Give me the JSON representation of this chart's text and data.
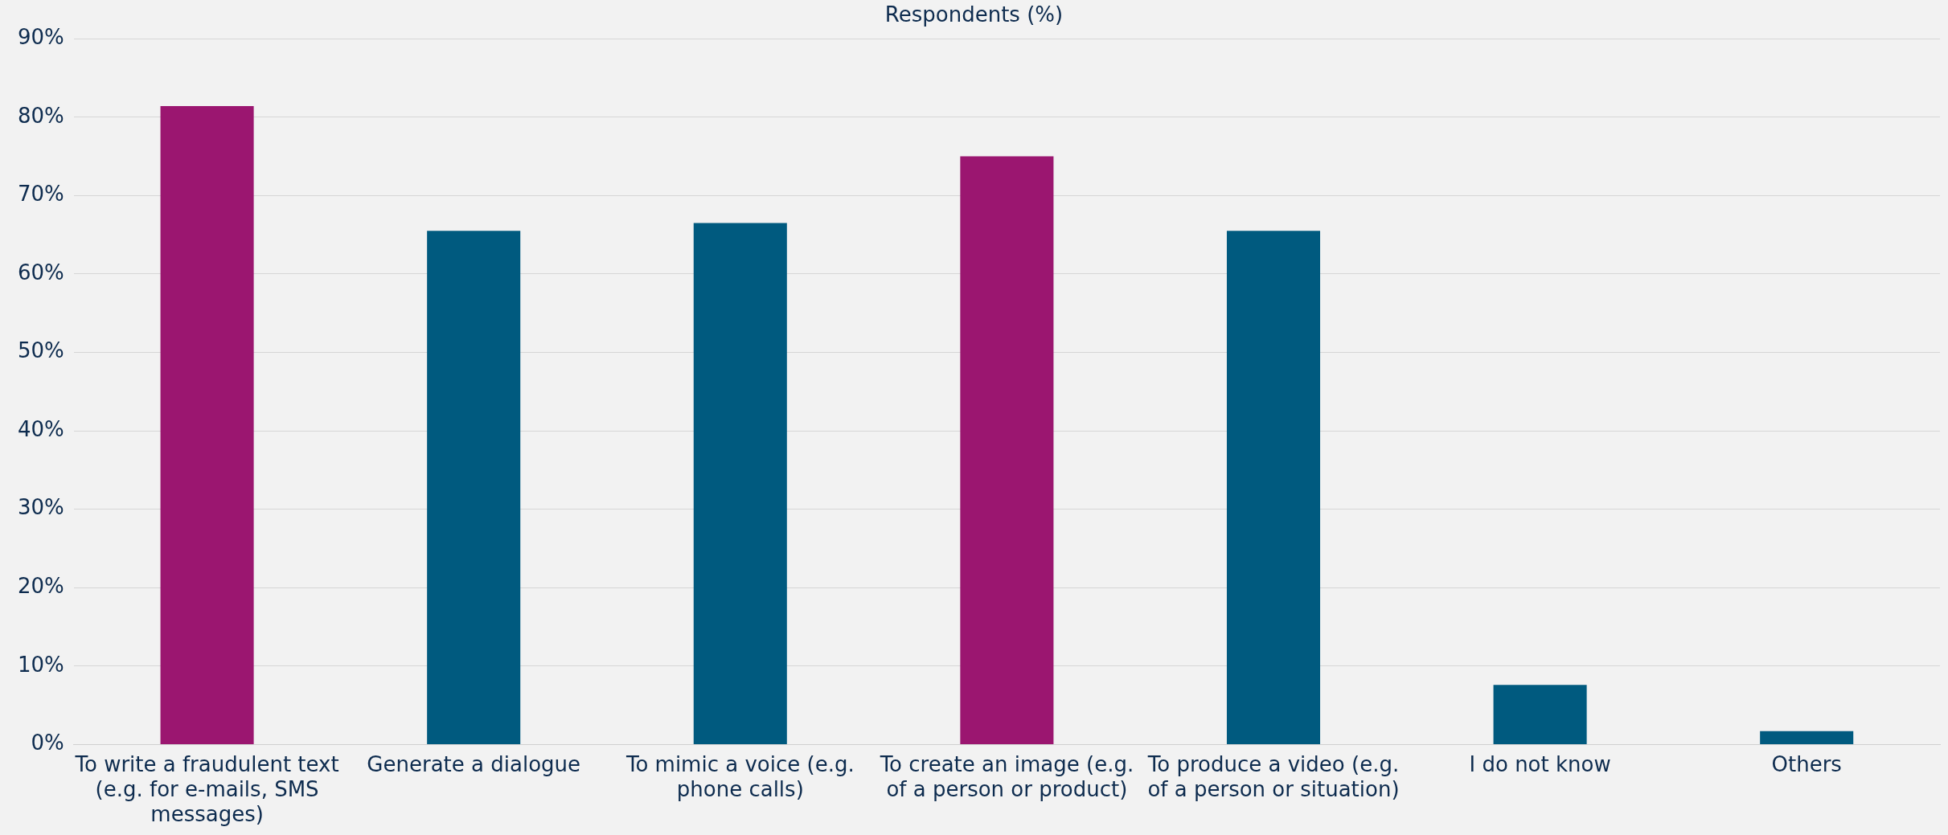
{
  "chart_data": {
    "type": "bar",
    "title": "Respondents (%)",
    "categories": [
      "To write a fraudulent text (e.g. for e-mails, SMS messages)",
      "Generate a dialogue",
      "To mimic a voice (e.g. phone calls)",
      "To create an image (e.g. of a person or product)",
      "To produce a video (e.g. of a person or situation)",
      "I do not know",
      "Others"
    ],
    "values": [
      81.4,
      65.5,
      66.5,
      75,
      65.5,
      7.6,
      1.7
    ],
    "colors": [
      "#9b1670",
      "#005a7f",
      "#005a7f",
      "#9b1670",
      "#005a7f",
      "#005a7f",
      "#005a7f"
    ],
    "ylim": [
      0,
      90
    ],
    "yticks": [
      {
        "value": 0,
        "label": "0%"
      },
      {
        "value": 10,
        "label": "10%"
      },
      {
        "value": 20,
        "label": "20%"
      },
      {
        "value": 30,
        "label": "30%"
      },
      {
        "value": 40,
        "label": "40%"
      },
      {
        "value": 50,
        "label": "50%"
      },
      {
        "value": 60,
        "label": "60%"
      },
      {
        "value": 70,
        "label": "70%"
      },
      {
        "value": 80,
        "label": "80%"
      },
      {
        "value": 90,
        "label": "90%"
      }
    ],
    "grid": "y",
    "legend": false
  }
}
